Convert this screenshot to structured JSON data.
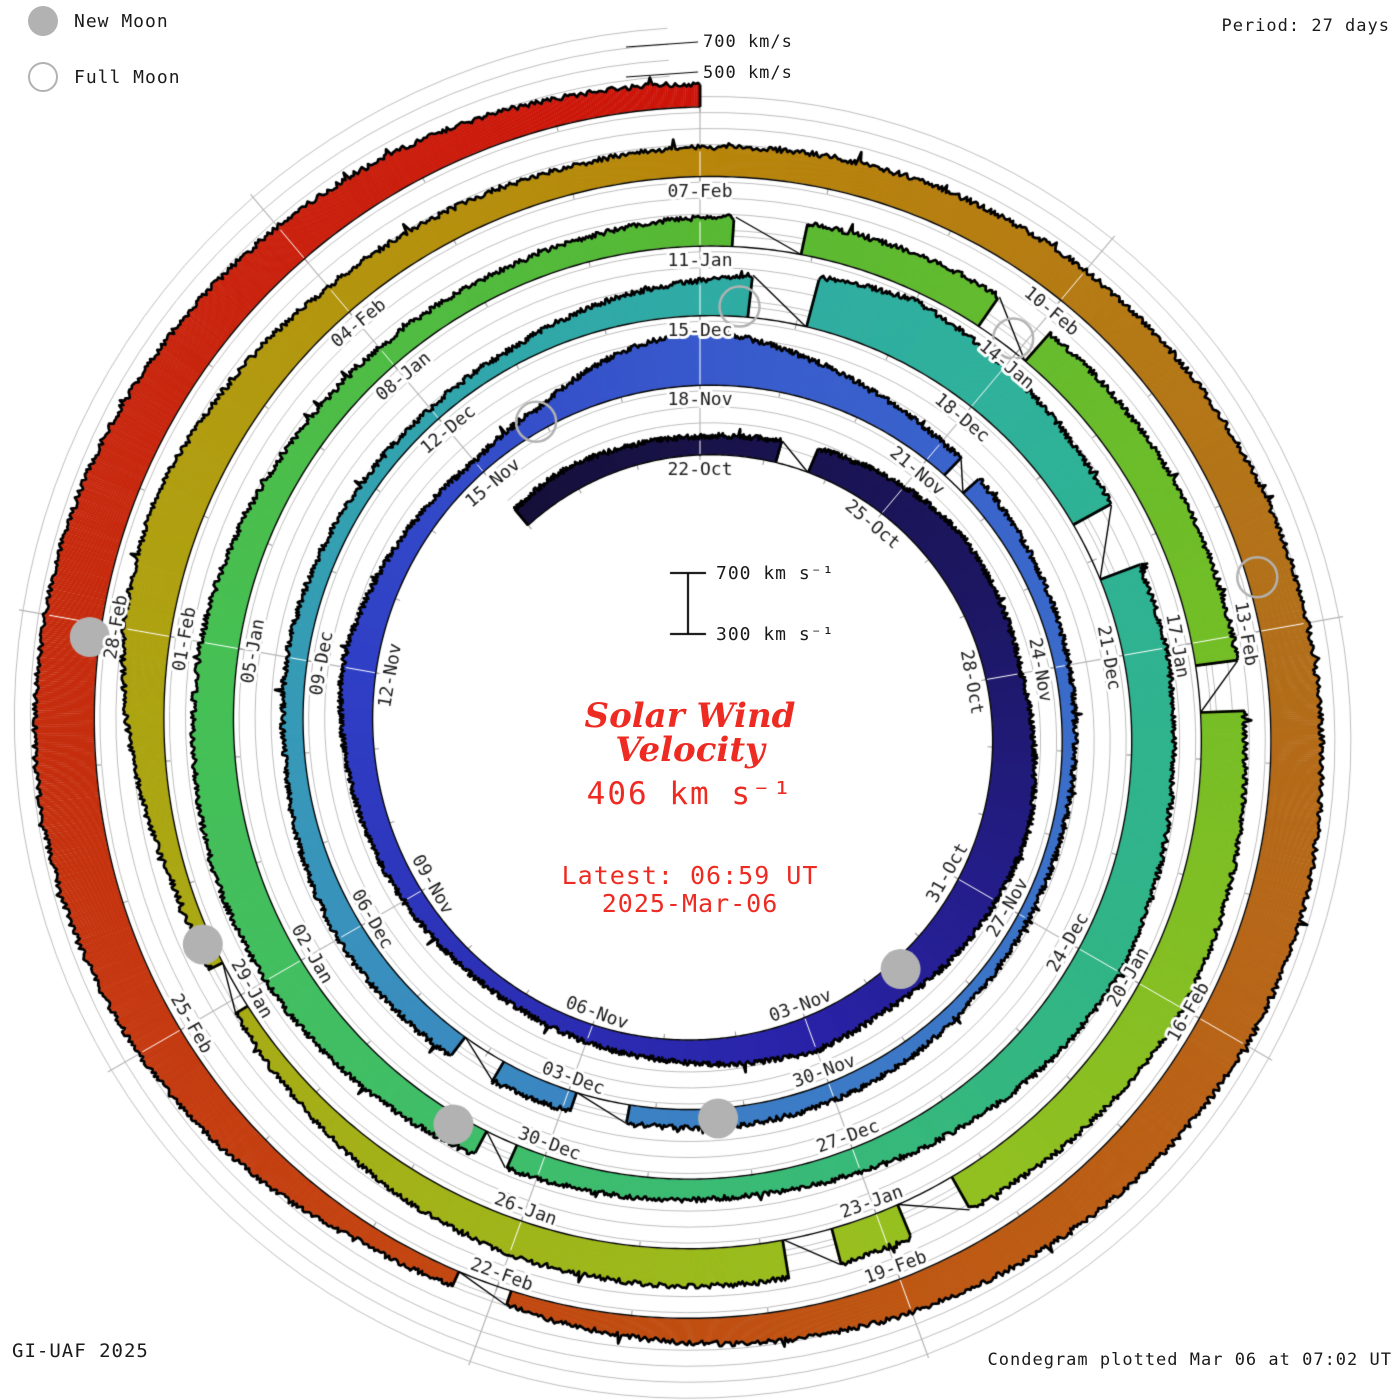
{
  "legend": {
    "new_moon": "New Moon",
    "full_moon": "Full Moon"
  },
  "period_label": "Period: 27 days",
  "axis_top": {
    "l700": "700 km/s",
    "l500": "500 km/s"
  },
  "center": {
    "scale_top": "700 km s⁻¹",
    "scale_bottom": "300 km s⁻¹",
    "title_line1": "Solar Wind",
    "title_line2": "Velocity",
    "current_value": "406 km s⁻¹",
    "latest_line1": "Latest: 06:59 UT",
    "latest_line2": "2025-Mar-06",
    "accent_color": "#ee2b22"
  },
  "footer": {
    "credit": "GI-UAF 2025",
    "plotted": "Condegram plotted Mar 06 at 07:02 UT"
  },
  "chart_data": {
    "type": "area",
    "variant": "condegram-spiral",
    "title": "Solar Wind Velocity",
    "period_days": 27,
    "start_date": "2024-10-19",
    "end_date": "2025-03-06",
    "latest_value_kms": 406,
    "baseline_kms": 300,
    "gridline_step_kms": 100,
    "ylim": [
      300,
      800
    ],
    "grid_on": true,
    "spoke_step_days": 3,
    "tick_step_days": 1,
    "spoke_labels": [
      [
        "22-Oct",
        "18-Nov",
        "15-Dec",
        "11-Jan",
        "07-Feb"
      ],
      [
        "25-Oct",
        "21-Nov",
        "18-Dec",
        "14-Jan",
        "10-Feb"
      ],
      [
        "28-Oct",
        "24-Nov",
        "21-Dec",
        "17-Jan",
        "13-Feb"
      ],
      [
        "31-Oct",
        "27-Nov",
        "24-Dec",
        "20-Jan",
        "16-Feb"
      ],
      [
        "03-Nov",
        "30-Nov",
        "27-Dec",
        "23-Jan",
        "19-Feb"
      ],
      [
        "06-Nov",
        "03-Dec",
        "30-Dec",
        "26-Jan",
        "22-Feb"
      ],
      [
        "09-Nov",
        "06-Dec",
        "02-Jan",
        "29-Jan",
        "25-Feb"
      ],
      [
        "12-Nov",
        "09-Dec",
        "05-Jan",
        "01-Feb",
        "28-Feb"
      ],
      [
        "15-Nov",
        "12-Dec",
        "08-Jan",
        "04-Feb"
      ]
    ],
    "daily_kms": [
      430,
      450,
      425,
      415,
      430,
      470,
      520,
      555,
      540,
      525,
      560,
      600,
      575,
      545,
      505,
      520,
      470,
      430,
      415,
      400,
      405,
      430,
      455,
      485,
      515,
      465,
      420,
      385,
      430,
      560,
      650,
      560,
      490,
      450,
      425,
      405,
      390,
      380,
      372,
      370,
      380,
      400,
      415,
      420,
      412,
      428,
      440,
      458,
      470,
      445,
      425,
      432,
      412,
      392,
      382,
      400,
      465,
      520,
      610,
      680,
      625,
      580,
      560,
      572,
      560,
      580,
      600,
      560,
      505,
      455,
      425,
      432,
      450,
      480,
      520,
      558,
      568,
      558,
      540,
      502,
      462,
      440,
      432,
      450,
      478,
      498,
      518,
      530,
      540,
      550,
      560,
      578,
      598,
      618,
      580,
      540,
      522,
      538,
      530,
      520,
      480,
      425,
      382,
      398,
      500,
      598,
      618,
      560,
      502,
      482,
      470,
      482,
      500,
      520,
      540,
      560,
      580,
      600,
      620,
      648,
      640,
      600,
      552,
      520,
      480,
      432,
      390,
      420,
      520,
      600,
      650,
      678,
      658,
      638,
      600,
      560,
      520,
      470,
      440
    ],
    "data_gaps_days": [
      [
        4.2,
        4.7
      ],
      [
        33.3,
        33.6
      ],
      [
        44.3,
        44.9
      ],
      [
        45.8,
        46.3
      ],
      [
        57.5,
        58.1
      ],
      [
        61.6,
        62.2
      ],
      [
        72.3,
        72.6
      ],
      [
        84.3,
        84.9
      ],
      [
        86.6,
        87.1
      ],
      [
        90.2,
        90.6
      ],
      [
        95.3,
        95.8
      ],
      [
        96.4,
        96.8
      ],
      [
        101.9,
        102.3
      ],
      [
        125.9,
        126.3
      ]
    ],
    "moons": [
      {
        "t": 13.5,
        "phase": "new"
      },
      {
        "t": 27.9,
        "phase": "full"
      },
      {
        "t": 43.3,
        "phase": "new"
      },
      {
        "t": 57.4,
        "phase": "full"
      },
      {
        "t": 72.9,
        "phase": "new"
      },
      {
        "t": 86.9,
        "phase": "full"
      },
      {
        "t": 102.5,
        "phase": "new"
      },
      {
        "t": 116.6,
        "phase": "full"
      },
      {
        "t": 131.9,
        "phase": "new"
      }
    ],
    "color_stops": [
      [
        0,
        "#16113a"
      ],
      [
        8,
        "#1e1864"
      ],
      [
        15,
        "#2a23a8"
      ],
      [
        24,
        "#3040c6"
      ],
      [
        31,
        "#3a5ecd"
      ],
      [
        43,
        "#3d7ec6"
      ],
      [
        49,
        "#3996bb"
      ],
      [
        55,
        "#31a8ab"
      ],
      [
        60,
        "#2fb19b"
      ],
      [
        66,
        "#31b587"
      ],
      [
        72,
        "#3fbe6d"
      ],
      [
        78,
        "#47c054"
      ],
      [
        84,
        "#58b934"
      ],
      [
        90,
        "#73be27"
      ],
      [
        96,
        "#97c01f"
      ],
      [
        102,
        "#a8ab15"
      ],
      [
        106,
        "#b09f10"
      ],
      [
        111,
        "#b8860b"
      ],
      [
        117,
        "#b26f1a"
      ],
      [
        122,
        "#bc5b13"
      ],
      [
        127,
        "#c44310"
      ],
      [
        131,
        "#c52f0e"
      ],
      [
        138,
        "#cd140a"
      ]
    ],
    "grid_color": "#bdbdbd",
    "spoke_color": "#b5b5b5",
    "moon_color": "#b2b2b2",
    "trace_color": "#000000"
  }
}
